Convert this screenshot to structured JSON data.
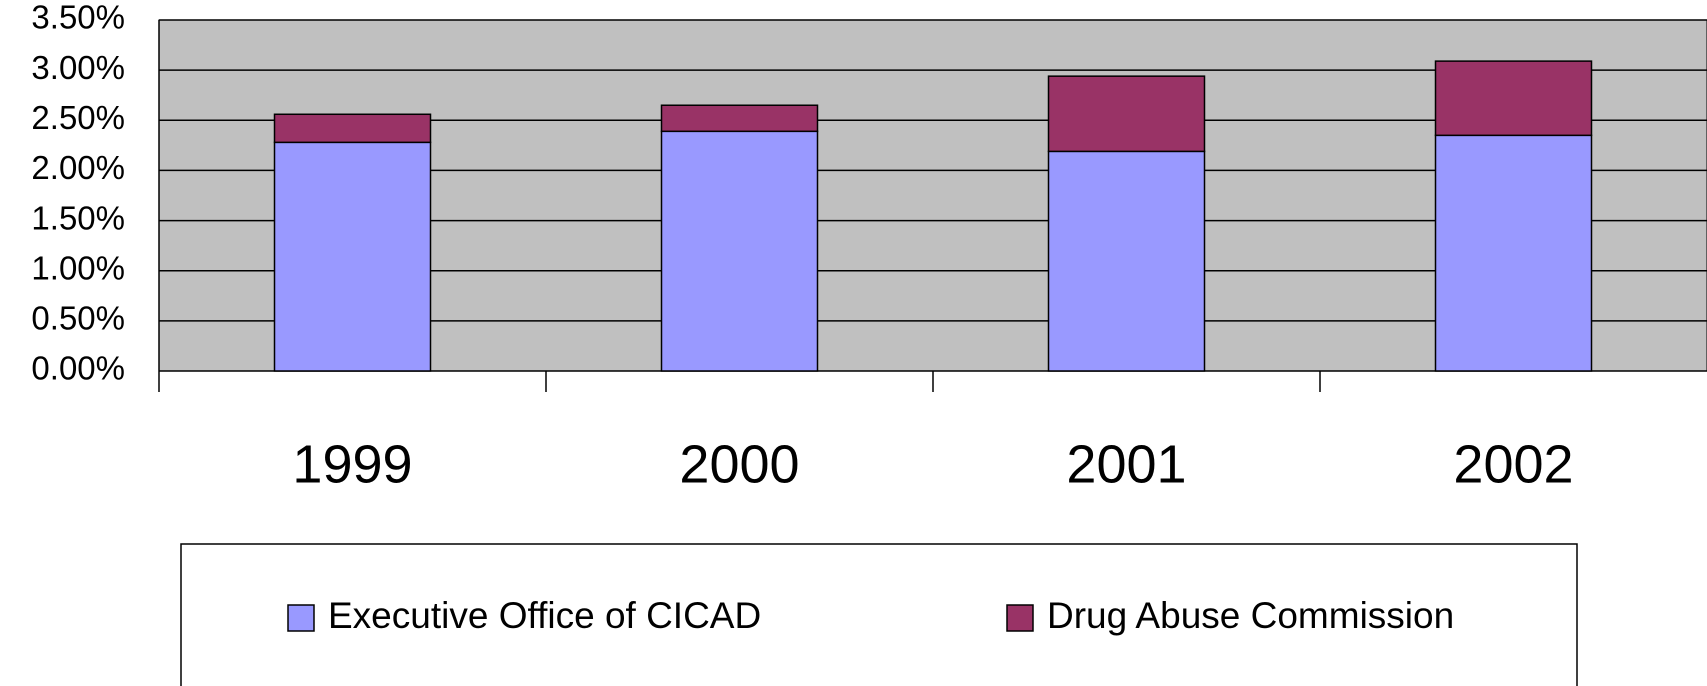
{
  "chart_data": {
    "type": "stacked_bar",
    "categories": [
      "1999",
      "2000",
      "2001",
      "2002"
    ],
    "series": [
      {
        "name": "Executive Office of CICAD",
        "color": "#9999ff",
        "values": [
          2.28,
          2.39,
          2.19,
          2.35
        ]
      },
      {
        "name": "Drug Abuse Commission",
        "color": "#993366",
        "values": [
          0.28,
          0.26,
          0.75,
          0.74
        ]
      }
    ],
    "ylim": [
      0,
      3.5
    ],
    "yticks": [
      {
        "value": 0,
        "label": "0.00%"
      },
      {
        "value": 0.5,
        "label": "0.50%"
      },
      {
        "value": 1,
        "label": "1.00%"
      },
      {
        "value": 1.5,
        "label": "1.50%"
      },
      {
        "value": 2,
        "label": "2.00%"
      },
      {
        "value": 2.5,
        "label": "2.50%"
      },
      {
        "value": 3,
        "label": "3.00%"
      },
      {
        "value": 3.5,
        "label": "3.50%"
      }
    ],
    "grid": true,
    "plot_background": "#c0c0c0",
    "legend": "bottom"
  }
}
